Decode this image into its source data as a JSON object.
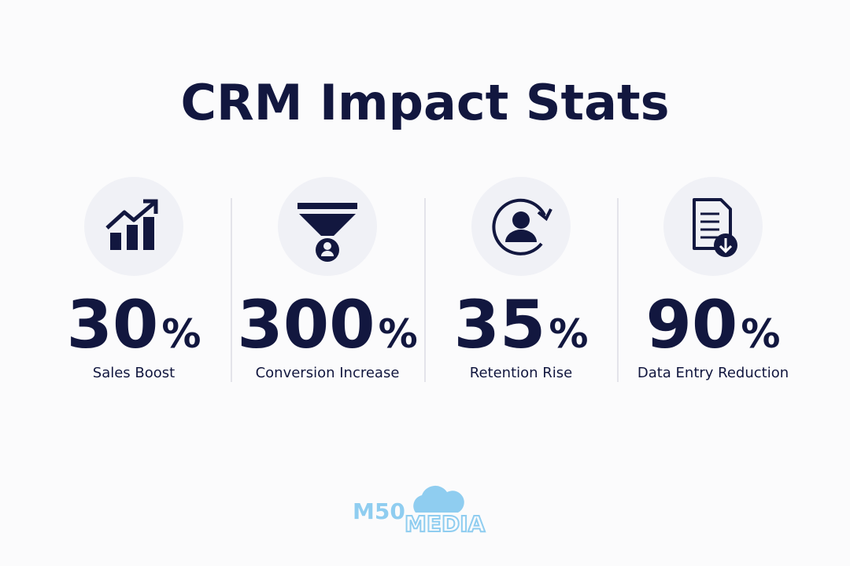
{
  "title": "CRM Impact Stats",
  "stats": [
    {
      "value": "30",
      "unit": "%",
      "label": "Sales Boost"
    },
    {
      "value": "300",
      "unit": "%",
      "label": "Conversion Increase"
    },
    {
      "value": "35",
      "unit": "%",
      "label": "Retention Rise"
    },
    {
      "value": "90",
      "unit": "%",
      "label": "Data Entry Reduction"
    }
  ],
  "logo": {
    "line1": "M50",
    "line2": "MEDIA"
  }
}
